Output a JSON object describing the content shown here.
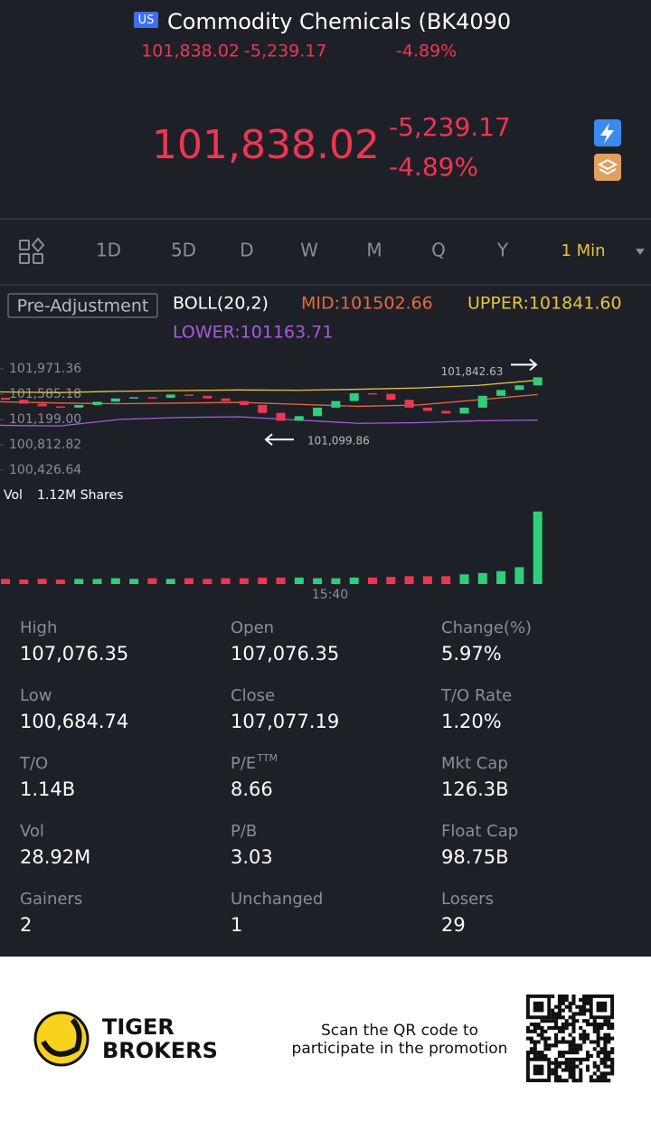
{
  "header": {
    "badge": "US",
    "title": "Commodity Chemicals (BK4090",
    "price": "101,838.02",
    "change": "-5,239.17",
    "change_pct": "-4.89%"
  },
  "quote": {
    "price": "101,838.02",
    "change": "-5,239.17",
    "change_pct": "-4.89%"
  },
  "tabs": [
    "1D",
    "5D",
    "D",
    "W",
    "M",
    "Q",
    "Y",
    "1 Min"
  ],
  "indicators": {
    "adjustment": "Pre-Adjustment",
    "boll": "BOLL(20,2)",
    "mid": "MID:101502.66",
    "upper": "UPPER:101841.60",
    "lower": "LOWER:101163.71"
  },
  "chart_data": {
    "type": "candlestick",
    "ylim": [
      100400,
      102050
    ],
    "yticks": [
      {
        "value": 101971.36,
        "label": "101,971.36"
      },
      {
        "value": 101585.18,
        "label": "101,585.18"
      },
      {
        "value": 101199.0,
        "label": "101,199.00"
      },
      {
        "value": 100812.82,
        "label": "100,812.82"
      },
      {
        "value": 100426.64,
        "label": "100,426.64"
      }
    ],
    "up_color": "#2fcf78",
    "down_color": "#f0364f",
    "open": [
      101530,
      101500,
      101440,
      101400,
      101380,
      101420,
      101470,
      101520,
      101540,
      101530,
      101580,
      101560,
      101520,
      101480,
      101420,
      101300,
      101180,
      101250,
      101380,
      101480,
      101600,
      101590,
      101500,
      101380,
      101330,
      101290,
      101380,
      101560,
      101650,
      101720
    ],
    "close": [
      101500,
      101440,
      101400,
      101380,
      101420,
      101470,
      101520,
      101540,
      101530,
      101580,
      101560,
      101520,
      101480,
      101420,
      101300,
      101180,
      101250,
      101380,
      101480,
      101600,
      101590,
      101500,
      101380,
      101330,
      101290,
      101380,
      101560,
      101650,
      101720,
      101842.63
    ],
    "bands": [
      {
        "name": "UPPER",
        "color": "#e8c33a",
        "values": [
          101620,
          101610,
          101630,
          101640,
          101650,
          101645,
          101660,
          101680,
          101720,
          101800
        ]
      },
      {
        "name": "MID",
        "color": "#e8693a",
        "values": [
          101470,
          101450,
          101440,
          101450,
          101460,
          101430,
          101400,
          101420,
          101500,
          101580
        ]
      },
      {
        "name": "LOWER",
        "color": "#a55be0",
        "values": [
          101110,
          101100,
          101200,
          101230,
          101240,
          101190,
          101140,
          101150,
          101180,
          101190
        ]
      }
    ],
    "annotations": [
      {
        "value": 101842.63,
        "label": "101,842.63"
      },
      {
        "value": 101099.86,
        "label": "101,099.86"
      }
    ],
    "volume": {
      "label": "Vol",
      "value_label": "1.12M Shares",
      "ylim": [
        0,
        1.2
      ],
      "values": [
        0.08,
        0.07,
        0.08,
        0.07,
        0.08,
        0.08,
        0.09,
        0.08,
        0.09,
        0.08,
        0.09,
        0.08,
        0.09,
        0.09,
        0.1,
        0.1,
        0.1,
        0.09,
        0.09,
        0.1,
        0.1,
        0.11,
        0.12,
        0.12,
        0.12,
        0.15,
        0.17,
        0.2,
        0.26,
        1.12
      ]
    },
    "x_label": "15:40"
  },
  "stats": [
    {
      "label": "High",
      "value": "107,076.35"
    },
    {
      "label": "Open",
      "value": "107,076.35"
    },
    {
      "label": "Change(%)",
      "value": "5.97%"
    },
    {
      "label": "Low",
      "value": "100,684.74"
    },
    {
      "label": "Close",
      "value": "107,077.19"
    },
    {
      "label": "T/O Rate",
      "value": "1.20%"
    },
    {
      "label": "T/O",
      "value": "1.14B"
    },
    {
      "label": "P/E",
      "label_sup": "TTM",
      "value": "8.66"
    },
    {
      "label": "Mkt Cap",
      "value": "126.3B"
    },
    {
      "label": "Vol",
      "value": "28.92M"
    },
    {
      "label": "P/B",
      "value": "3.03"
    },
    {
      "label": "Float Cap",
      "value": "98.75B"
    },
    {
      "label": "Gainers",
      "value": "2"
    },
    {
      "label": "Unchanged",
      "value": "1"
    },
    {
      "label": "Losers",
      "value": "29"
    }
  ],
  "footer": {
    "brand": [
      "TIGER",
      "BROKERS"
    ],
    "promo": [
      "Scan the QR code to",
      "participate in the promotion"
    ]
  }
}
